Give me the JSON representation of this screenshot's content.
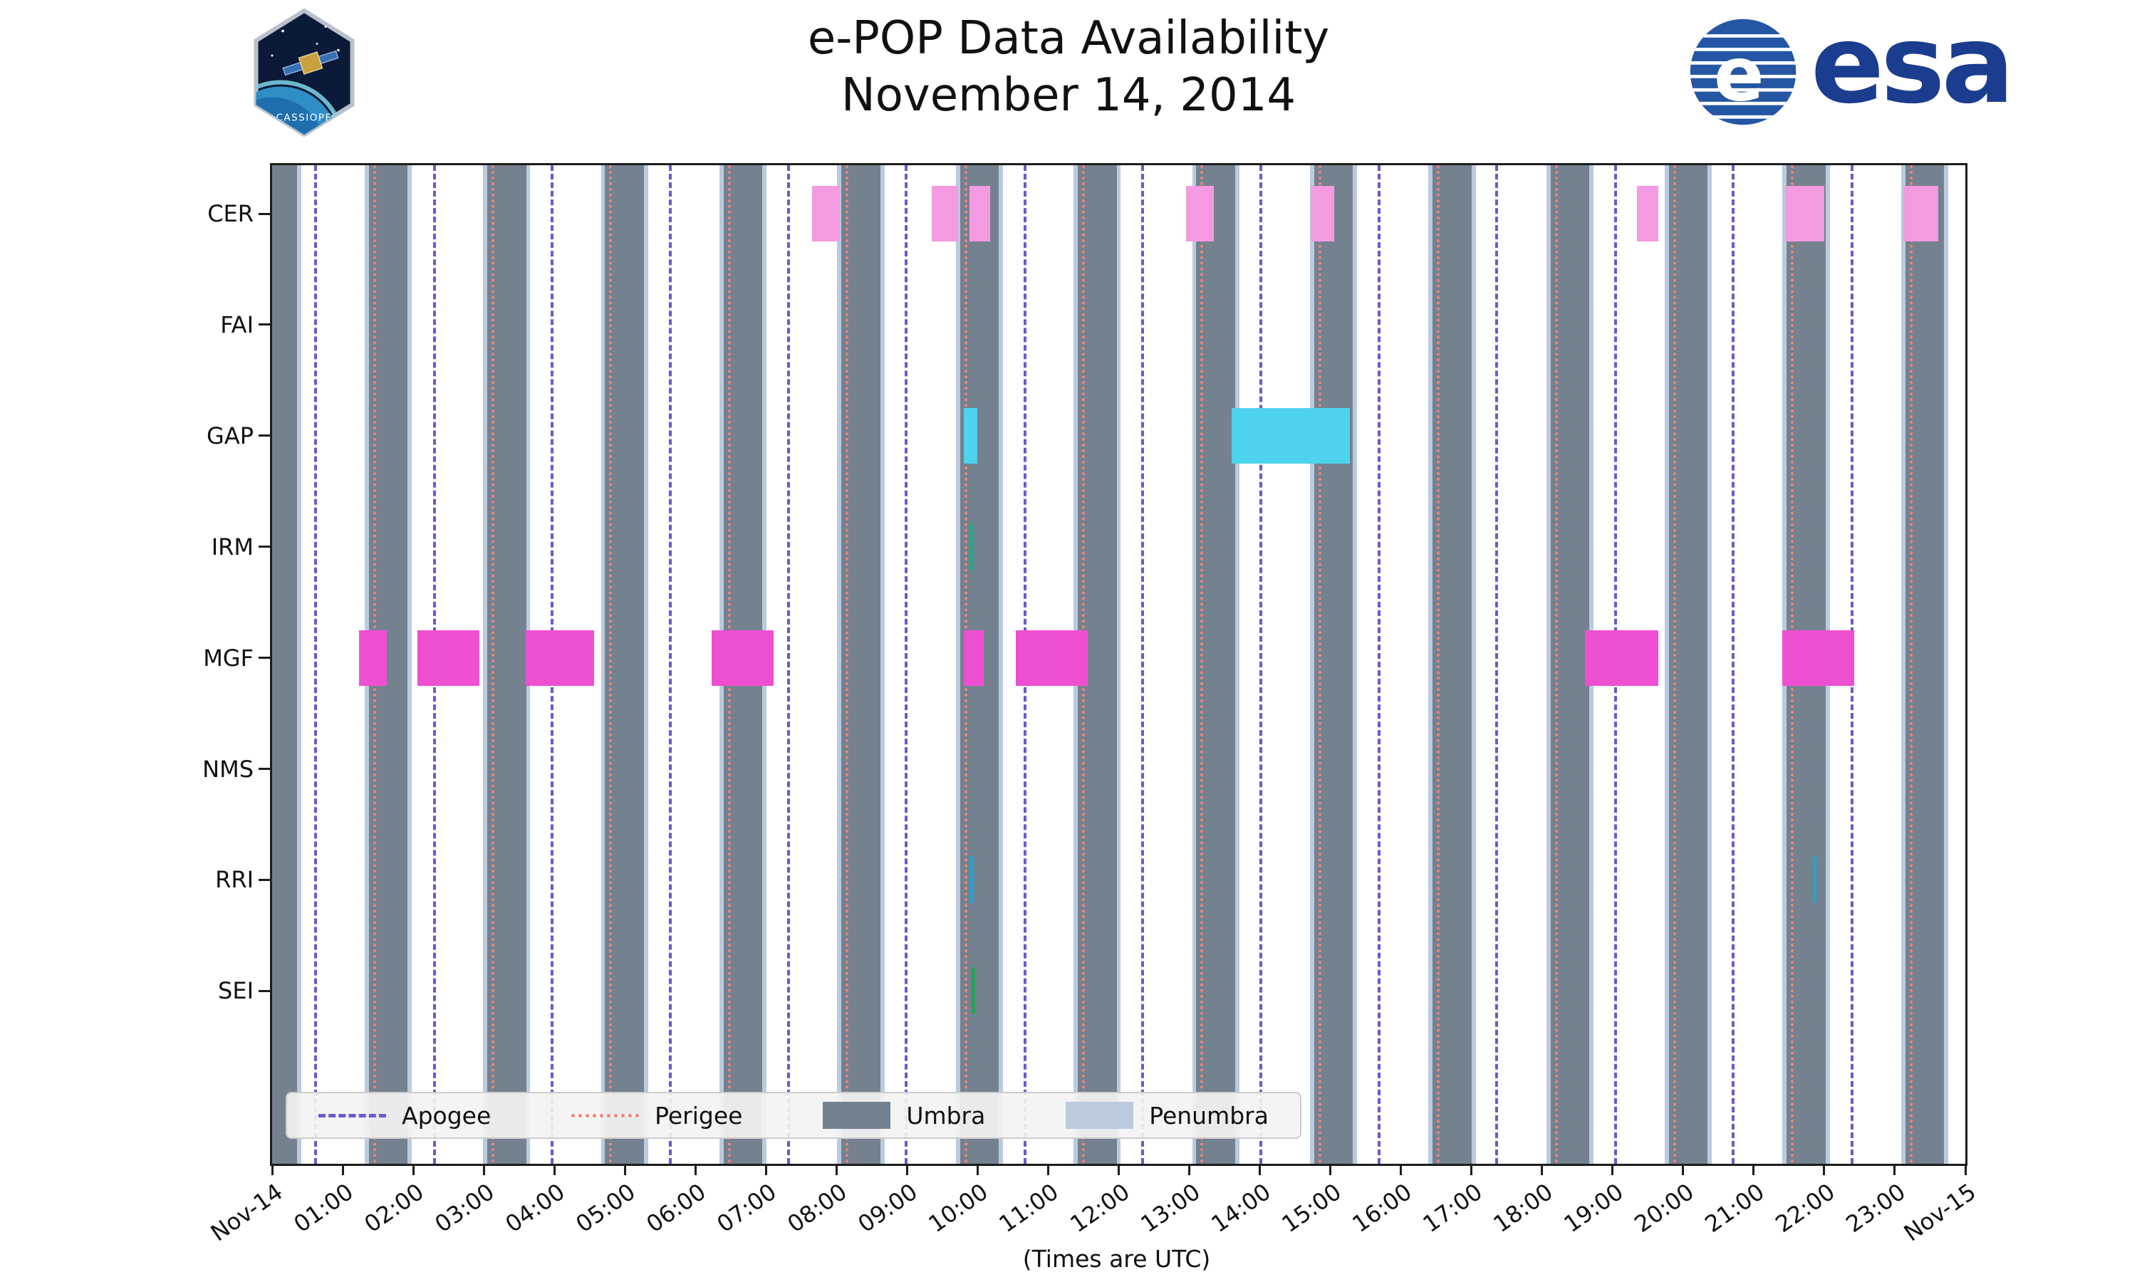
{
  "header": {
    "title": "e-POP Data Availability",
    "subtitle": "November 14, 2014"
  },
  "logos": {
    "cassiope": {
      "label": "CASSIOPE"
    },
    "esa": {
      "text": "esa",
      "color": "#1b3d8f"
    }
  },
  "chart_data": {
    "type": "availability-timeline",
    "title": "e-POP Data Availability",
    "subtitle": "November 14, 2014",
    "xlabel": "(Times are UTC)",
    "x_range_hours": [
      0,
      24
    ],
    "x_tick_labels": [
      "Nov-14",
      "01:00",
      "02:00",
      "03:00",
      "04:00",
      "05:00",
      "06:00",
      "07:00",
      "08:00",
      "09:00",
      "10:00",
      "11:00",
      "12:00",
      "13:00",
      "14:00",
      "15:00",
      "16:00",
      "17:00",
      "18:00",
      "19:00",
      "20:00",
      "21:00",
      "22:00",
      "23:00",
      "Nov-15"
    ],
    "rows": [
      "CER",
      "FAI",
      "GAP",
      "IRM",
      "MGF",
      "NMS",
      "RRI",
      "SEI"
    ],
    "grid": false,
    "colors": {
      "umbra": "#74818f",
      "penumbra": "#bccadf",
      "apogee": "#6a5acd",
      "perigee": "#f2837a",
      "axis": "#1c1c1c",
      "text": "#111111",
      "series": {
        "cer": "#f49ae1",
        "mgf": "#ee4fd1",
        "gap": "#4ed3ee",
        "irm": "#2aa589",
        "rri": "#2aa0c8",
        "sei": "#2e9e5b"
      }
    },
    "penumbra_edge_hours": 0.06,
    "umbra_intervals_hours": [
      [
        0.0,
        0.35
      ],
      [
        1.37,
        1.92
      ],
      [
        3.05,
        3.6
      ],
      [
        4.72,
        5.27
      ],
      [
        6.4,
        6.95
      ],
      [
        8.07,
        8.62
      ],
      [
        9.75,
        10.3
      ],
      [
        11.42,
        11.97
      ],
      [
        13.1,
        13.65
      ],
      [
        14.77,
        15.32
      ],
      [
        16.45,
        17.0
      ],
      [
        18.12,
        18.67
      ],
      [
        19.8,
        20.35
      ],
      [
        21.47,
        22.02
      ],
      [
        23.15,
        23.7
      ]
    ],
    "apogee_hours": [
      0.62,
      2.3,
      3.97,
      5.64,
      7.32,
      8.99,
      10.67,
      12.34,
      14.01,
      15.69,
      17.36,
      19.04,
      20.71,
      22.39
    ],
    "perigee_hours": [
      1.45,
      3.13,
      4.8,
      6.48,
      8.15,
      9.83,
      11.5,
      13.18,
      14.85,
      16.53,
      18.2,
      19.88,
      21.55,
      23.23
    ],
    "bars": [
      {
        "row": "CER",
        "start": 7.65,
        "end": 8.05,
        "key": "cer",
        "kind": "bar"
      },
      {
        "row": "CER",
        "start": 9.35,
        "end": 9.72,
        "key": "cer",
        "kind": "bar"
      },
      {
        "row": "CER",
        "start": 9.88,
        "end": 10.18,
        "key": "cer",
        "kind": "bar"
      },
      {
        "row": "CER",
        "start": 12.95,
        "end": 13.35,
        "key": "cer",
        "kind": "bar"
      },
      {
        "row": "CER",
        "start": 14.72,
        "end": 15.05,
        "key": "cer",
        "kind": "bar"
      },
      {
        "row": "CER",
        "start": 19.35,
        "end": 19.65,
        "key": "cer",
        "kind": "bar"
      },
      {
        "row": "CER",
        "start": 21.45,
        "end": 22.0,
        "key": "cer",
        "kind": "bar"
      },
      {
        "row": "CER",
        "start": 23.12,
        "end": 23.62,
        "key": "cer",
        "kind": "bar"
      },
      {
        "row": "GAP",
        "start": 9.8,
        "end": 10.0,
        "key": "gap",
        "kind": "bar"
      },
      {
        "row": "GAP",
        "start": 13.6,
        "end": 15.28,
        "key": "gap",
        "kind": "bar"
      },
      {
        "row": "IRM",
        "start": 9.88,
        "end": 9.93,
        "key": "irm",
        "kind": "tick"
      },
      {
        "row": "MGF",
        "start": 1.23,
        "end": 1.63,
        "key": "mgf",
        "kind": "bar"
      },
      {
        "row": "MGF",
        "start": 2.06,
        "end": 2.94,
        "key": "mgf",
        "kind": "bar"
      },
      {
        "row": "MGF",
        "start": 3.59,
        "end": 4.56,
        "key": "mgf",
        "kind": "bar"
      },
      {
        "row": "MGF",
        "start": 6.23,
        "end": 7.11,
        "key": "mgf",
        "kind": "bar"
      },
      {
        "row": "MGF",
        "start": 9.8,
        "end": 10.09,
        "key": "mgf",
        "kind": "bar"
      },
      {
        "row": "MGF",
        "start": 10.54,
        "end": 11.56,
        "key": "mgf",
        "kind": "bar"
      },
      {
        "row": "MGF",
        "start": 18.61,
        "end": 19.65,
        "key": "mgf",
        "kind": "bar"
      },
      {
        "row": "MGF",
        "start": 21.41,
        "end": 22.43,
        "key": "mgf",
        "kind": "bar"
      },
      {
        "row": "RRI",
        "start": 9.88,
        "end": 9.92,
        "key": "rri",
        "kind": "tick"
      },
      {
        "row": "RRI",
        "start": 21.84,
        "end": 21.88,
        "key": "rri",
        "kind": "tick"
      },
      {
        "row": "SEI",
        "start": 9.92,
        "end": 9.96,
        "key": "sei",
        "kind": "tick"
      }
    ],
    "legend_items": [
      {
        "label": "Apogee",
        "style": "dashed",
        "color_key": "apogee"
      },
      {
        "label": "Perigee",
        "style": "dotted",
        "color_key": "perigee"
      },
      {
        "label": "Umbra",
        "style": "patch",
        "color_key": "umbra"
      },
      {
        "label": "Penumbra",
        "style": "patch",
        "color_key": "penumbra"
      }
    ]
  }
}
